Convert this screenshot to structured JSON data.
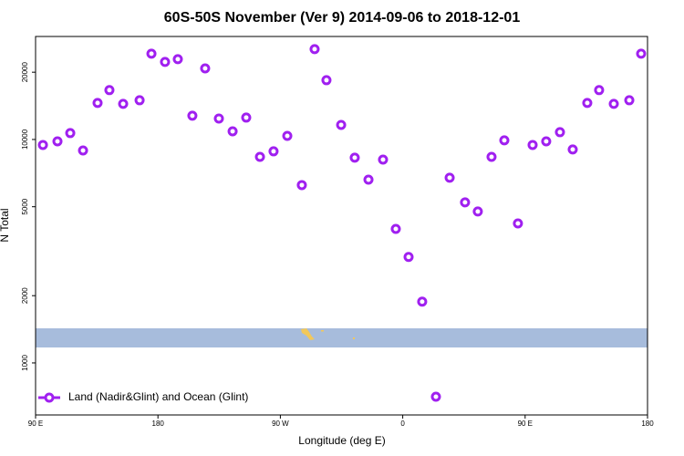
{
  "chart_data": {
    "type": "scatter",
    "title": "60S-50S November (Ver 9)   2014-09-06 to 2018-12-01",
    "x_label": "Longitude (deg E)",
    "y_label": "N Total",
    "log_scale": true,
    "legend": "bottom-left",
    "x": [
      95.4,
      106.1,
      115.5,
      124.9,
      135.6,
      144.3,
      154.4,
      166.5,
      175.2,
      185.2,
      194.6,
      205.3,
      214.7,
      224.8,
      234.9,
      244.9,
      255.0,
      265.0,
      275.1,
      285.8,
      295.2,
      303.9,
      314.7,
      324.7,
      334.8,
      345.5,
      354.9,
      364.3,
      374.3,
      384.4,
      394.5,
      405.8,
      415.2,
      425.3,
      434.7,
      444.7,
      455.5,
      465.5,
      475.6,
      485.0,
      495.7,
      504.4,
      515.2,
      526.6,
      535.3
    ],
    "series": [
      {
        "name": "Land (Nadir&Glint) and Ocean (Glint)",
        "color": "#a020f0",
        "values": [
          9450,
          9810,
          10680,
          8930,
          14570,
          16630,
          14440,
          14980,
          24200,
          22230,
          22870,
          12770,
          20800,
          12410,
          10880,
          12530,
          8360,
          8850,
          10380,
          6250,
          25370,
          18420,
          11620,
          8290,
          6610,
          8130,
          3980,
          2980,
          1880,
          706,
          6740,
          5230,
          4760,
          8360,
          9910,
          4210,
          9450,
          9810,
          10780,
          9020,
          14570,
          16630,
          14440,
          14980,
          24200
        ]
      }
    ],
    "xlim": [
      90,
      540
    ],
    "xticks": [
      {
        "value": 90,
        "label": "90 E"
      },
      {
        "value": 180,
        "label": "180"
      },
      {
        "value": 270,
        "label": "90 W"
      },
      {
        "value": 360,
        "label": "0"
      },
      {
        "value": 450,
        "label": "90 E"
      },
      {
        "value": 540,
        "label": "180"
      }
    ],
    "ylim": [
      585,
      28900
    ],
    "yticks": [
      1000,
      2000,
      5000,
      10000,
      20000
    ]
  }
}
